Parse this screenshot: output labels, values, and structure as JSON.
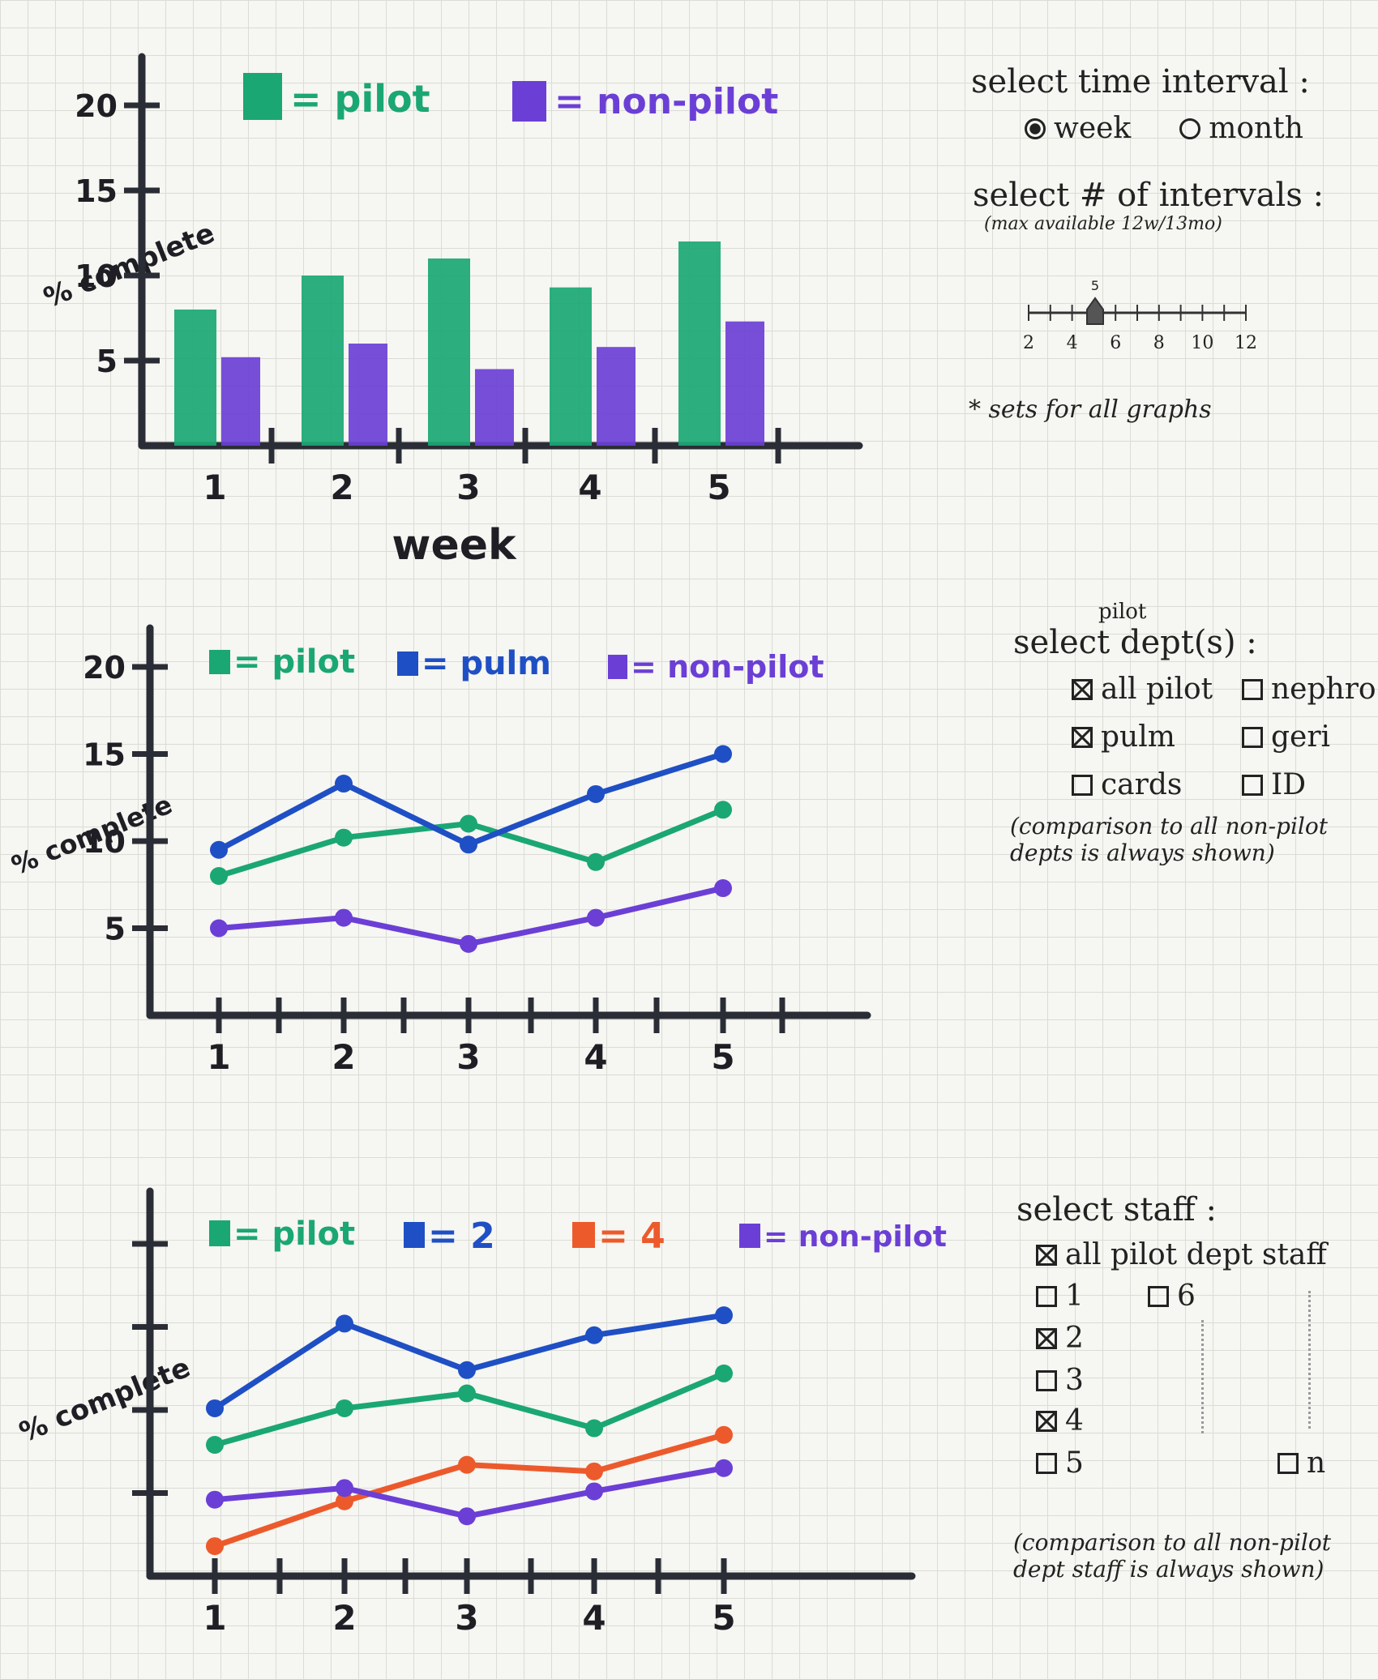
{
  "chart_data": [
    {
      "type": "bar",
      "categories": [
        "1",
        "2",
        "3",
        "4",
        "5"
      ],
      "series": [
        {
          "name": "pilot",
          "color": "#1aa774",
          "values": [
            8,
            10,
            11,
            9.3,
            12
          ]
        },
        {
          "name": "non-pilot",
          "color": "#6b3fd6",
          "values": [
            5.2,
            6,
            4.5,
            5.8,
            7.3
          ]
        }
      ],
      "legend": [
        "= pilot",
        "= non-pilot"
      ],
      "ylabel": "% complete",
      "xlabel": "week",
      "yticks": [
        "5",
        "10",
        "15",
        "20"
      ],
      "ylim": [
        0,
        22
      ]
    },
    {
      "type": "line",
      "categories": [
        "1",
        "2",
        "3",
        "4",
        "5"
      ],
      "series": [
        {
          "name": "pilot",
          "color": "#1aa774",
          "values": [
            8,
            10.2,
            11,
            8.8,
            11.8
          ]
        },
        {
          "name": "pulm",
          "color": "#1f4fc4",
          "values": [
            9.5,
            13.3,
            9.8,
            12.7,
            15
          ]
        },
        {
          "name": "non-pilot",
          "color": "#6b3fd6",
          "values": [
            5,
            5.6,
            4.1,
            5.6,
            7.3
          ]
        }
      ],
      "legend": [
        "= pilot",
        "= pulm",
        "= non-pilot"
      ],
      "ylabel": "% complete",
      "yticks": [
        "5",
        "10",
        "15",
        "20"
      ],
      "ylim": [
        0,
        22
      ]
    },
    {
      "type": "line",
      "categories": [
        "1",
        "2",
        "3",
        "4",
        "5"
      ],
      "series": [
        {
          "name": "pilot",
          "color": "#1aa774",
          "values": [
            7.9,
            10.1,
            11,
            8.9,
            12.2
          ]
        },
        {
          "name": "2",
          "color": "#1f4fc4",
          "values": [
            10.1,
            15.2,
            12.4,
            14.5,
            15.7
          ]
        },
        {
          "name": "4",
          "color": "#ec5a2c",
          "values": [
            1.8,
            4.5,
            6.7,
            6.3,
            8.5
          ]
        },
        {
          "name": "non-pilot",
          "color": "#6b3fd6",
          "values": [
            4.6,
            5.3,
            3.6,
            5.1,
            6.5
          ]
        }
      ],
      "legend": [
        "= pilot",
        "= 2",
        "= 4",
        "= non-pilot"
      ],
      "ylabel": "% complete",
      "ylim": [
        0,
        22
      ]
    }
  ],
  "controls": {
    "time_interval": {
      "title": "select time interval :",
      "options": [
        {
          "label": "week",
          "selected": true
        },
        {
          "label": "month",
          "selected": false
        }
      ]
    },
    "num_intervals": {
      "title": "select # of intervals :",
      "note": "(max available 12w/13mo)",
      "value_label": "5",
      "value": 5,
      "min": 2,
      "max": 12,
      "tick_labels": [
        "2",
        "4",
        "6",
        "8",
        "10",
        "12"
      ],
      "footnote": "* sets for all graphs"
    },
    "depts": {
      "title_over": "pilot",
      "title": "select dept(s) :",
      "items": [
        {
          "label": "all pilot",
          "checked": true
        },
        {
          "label": "nephro",
          "checked": false
        },
        {
          "label": "pulm",
          "checked": true
        },
        {
          "label": "geri",
          "checked": false
        },
        {
          "label": "cards",
          "checked": false
        },
        {
          "label": "ID",
          "checked": false
        }
      ],
      "note": "(comparison to all non-pilot depts is always shown)"
    },
    "staff": {
      "title": "select staff :",
      "all_label": "all pilot dept staff",
      "all_checked": true,
      "items": [
        {
          "label": "1",
          "checked": false
        },
        {
          "label": "6",
          "checked": false
        },
        {
          "label": "2",
          "checked": true
        },
        {
          "label": "3",
          "checked": false
        },
        {
          "label": "4",
          "checked": true
        },
        {
          "label": "5",
          "checked": false
        },
        {
          "label": "n",
          "checked": false
        }
      ],
      "note": "(comparison to all non-pilot dept staff is always shown)"
    }
  }
}
